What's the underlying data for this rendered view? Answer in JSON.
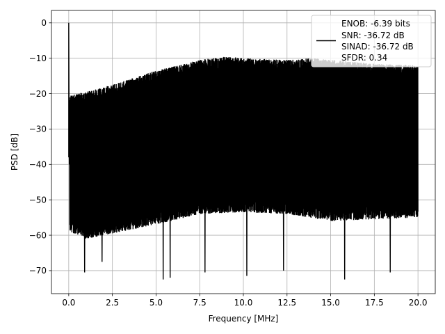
{
  "chart_data": {
    "type": "line",
    "title": "",
    "xlabel": "Frequency [MHz]",
    "ylabel": "PSD [dB]",
    "xlim": [
      -0.99,
      20.99
    ],
    "ylim": [
      -76.5,
      3.5
    ],
    "x_ticks": [
      0.0,
      2.5,
      5.0,
      7.5,
      10.0,
      12.5,
      15.0,
      17.5,
      20.0
    ],
    "x_tick_labels": [
      "0.0",
      "2.5",
      "5.0",
      "7.5",
      "10.0",
      "12.5",
      "15.0",
      "17.5",
      "20.0"
    ],
    "y_ticks": [
      0,
      -10,
      -20,
      -30,
      -40,
      -50,
      -60,
      -70
    ],
    "y_tick_labels": [
      "0",
      "−10",
      "−20",
      "−30",
      "−40",
      "−50",
      "−60",
      "−70"
    ],
    "grid": true,
    "legend_position": "top-right",
    "line_color": "#000000",
    "series": [
      {
        "legend_lines": [
          "ENOB: -6.39 bits",
          "SNR: -36.72 dB",
          "SINAD: -36.72 dB",
          "SFDR: 0.34"
        ],
        "fundamental": {
          "x": 0.0,
          "y": 0.0
        },
        "upper_envelope": {
          "x": [
            0.05,
            1.0,
            2.5,
            5.0,
            7.5,
            9.0,
            10.0,
            12.5,
            14.0,
            15.0,
            17.5,
            20.0
          ],
          "y": [
            -20.5,
            -19.5,
            -17.5,
            -13.5,
            -10.5,
            -9.5,
            -10.0,
            -10.5,
            -10.0,
            -10.5,
            -11.5,
            -12.0
          ]
        },
        "lower_envelope": {
          "x": [
            0.05,
            1.0,
            2.5,
            5.0,
            7.5,
            10.0,
            12.5,
            15.0,
            17.5,
            20.0
          ],
          "y": [
            -59.0,
            -61.0,
            -59.5,
            -57.0,
            -54.0,
            -53.5,
            -54.0,
            -56.0,
            -55.5,
            -55.0
          ]
        },
        "deep_dips": [
          {
            "x": 0.9,
            "y": -70.5
          },
          {
            "x": 1.9,
            "y": -67.5
          },
          {
            "x": 5.4,
            "y": -72.5
          },
          {
            "x": 5.8,
            "y": -72.0
          },
          {
            "x": 7.8,
            "y": -70.5
          },
          {
            "x": 10.2,
            "y": -71.5
          },
          {
            "x": 12.3,
            "y": -70.0
          },
          {
            "x": 15.8,
            "y": -72.5
          },
          {
            "x": 18.4,
            "y": -70.5
          }
        ]
      }
    ]
  }
}
